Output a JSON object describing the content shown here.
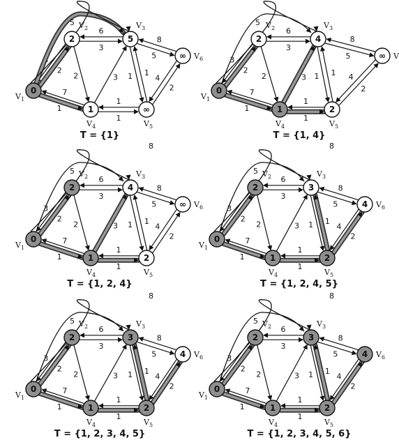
{
  "panels": [
    {
      "set_label": "T = {1}",
      "values": [
        "0",
        "2",
        "5",
        "1",
        "∞",
        "∞"
      ],
      "visited": [
        true,
        false,
        false,
        false,
        false,
        false
      ],
      "highlighted_edges": [
        [
          1,
          2
        ],
        [
          1,
          3
        ],
        [
          1,
          4
        ]
      ]
    },
    {
      "set_label": "T = {1, 4}",
      "values": [
        "0",
        "2",
        "4",
        "1",
        "2",
        "∞"
      ],
      "visited": [
        true,
        false,
        false,
        true,
        false,
        false
      ],
      "highlighted_edges": [
        [
          1,
          2
        ],
        [
          1,
          4
        ],
        [
          4,
          3
        ],
        [
          4,
          5
        ]
      ]
    },
    {
      "set_label": "T = {1, 2, 4}",
      "values": [
        "0",
        "2",
        "4",
        "1",
        "2",
        "∞"
      ],
      "visited": [
        true,
        true,
        false,
        true,
        false,
        false
      ],
      "highlighted_edges": [
        [
          1,
          2
        ],
        [
          1,
          4
        ],
        [
          4,
          3
        ],
        [
          4,
          5
        ]
      ]
    },
    {
      "set_label": "T = {1, 2, 4, 5}",
      "values": [
        "0",
        "2",
        "3",
        "1",
        "2",
        "4"
      ],
      "visited": [
        true,
        true,
        false,
        true,
        true,
        false
      ],
      "highlighted_edges": [
        [
          1,
          2
        ],
        [
          1,
          4
        ],
        [
          4,
          5
        ],
        [
          5,
          3
        ],
        [
          5,
          6
        ]
      ]
    },
    {
      "set_label": "T = {1, 2, 3, 4, 5}",
      "values": [
        "0",
        "2",
        "3",
        "1",
        "2",
        "4"
      ],
      "visited": [
        true,
        true,
        true,
        true,
        true,
        false
      ],
      "highlighted_edges": [
        [
          1,
          2
        ],
        [
          1,
          4
        ],
        [
          4,
          5
        ],
        [
          5,
          3
        ],
        [
          5,
          6
        ]
      ]
    },
    {
      "set_label": "T = {1, 2, 3, 4, 5, 6}",
      "values": [
        "0",
        "2",
        "3",
        "1",
        "2",
        "4"
      ],
      "visited": [
        true,
        true,
        true,
        true,
        true,
        true
      ],
      "highlighted_edges": [
        [
          1,
          2
        ],
        [
          1,
          4
        ],
        [
          4,
          5
        ],
        [
          5,
          3
        ],
        [
          5,
          6
        ]
      ]
    }
  ],
  "vertex_names": [
    "V",
    "V",
    "V",
    "V",
    "V",
    "V"
  ],
  "vertex_subscripts": [
    "1",
    "2",
    "3",
    "4",
    "5",
    "6"
  ],
  "edges": [
    {
      "from": 1,
      "to": 2,
      "weight": "2"
    },
    {
      "from": 2,
      "to": 1,
      "weight": "3"
    },
    {
      "from": 1,
      "to": 3,
      "weight": "5"
    },
    {
      "from": 3,
      "to": 1,
      "weight": "8"
    },
    {
      "from": 1,
      "to": 4,
      "weight": "1"
    },
    {
      "from": 4,
      "to": 1,
      "weight": "7"
    },
    {
      "from": 2,
      "to": 3,
      "weight": "3"
    },
    {
      "from": 3,
      "to": 2,
      "weight": "6"
    },
    {
      "from": 2,
      "to": 4,
      "weight": "2"
    },
    {
      "from": 4,
      "to": 3,
      "weight": "3"
    },
    {
      "from": 3,
      "to": 5,
      "weight": "1"
    },
    {
      "from": 5,
      "to": 3,
      "weight": "1"
    },
    {
      "from": 3,
      "to": 6,
      "weight": "5"
    },
    {
      "from": 6,
      "to": 3,
      "weight": "8"
    },
    {
      "from": 4,
      "to": 5,
      "weight": "1"
    },
    {
      "from": 5,
      "to": 4,
      "weight": "1"
    },
    {
      "from": 5,
      "to": 6,
      "weight": "2"
    },
    {
      "from": 6,
      "to": 5,
      "weight": "4"
    }
  ],
  "colors": {
    "visited_fill": "#8f8f8f",
    "unvisited_fill": "#ffffff",
    "edge_line": "#111111",
    "highlight_line": "#333333",
    "highlight_fill": "#9a9a9a"
  }
}
